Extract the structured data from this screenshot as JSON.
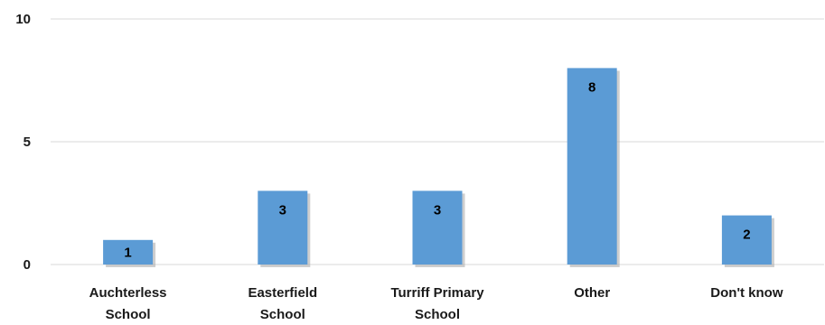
{
  "chart_data": {
    "type": "bar",
    "title": "",
    "xlabel": "",
    "ylabel": "",
    "categories": [
      [
        "Auchterless",
        "School"
      ],
      [
        "Easterfield",
        "School"
      ],
      [
        "Turriff Primary",
        "School"
      ],
      [
        "Other"
      ],
      [
        "Don't know"
      ]
    ],
    "values": [
      1,
      3,
      3,
      8,
      2
    ],
    "ylim": [
      0,
      10
    ],
    "yticks": [
      0,
      5,
      10
    ],
    "grid": true,
    "legend": "none",
    "colors": {
      "bar": "#5b9bd5",
      "shadow": "#a6a6a6",
      "grid": "#d9d9d9"
    }
  }
}
